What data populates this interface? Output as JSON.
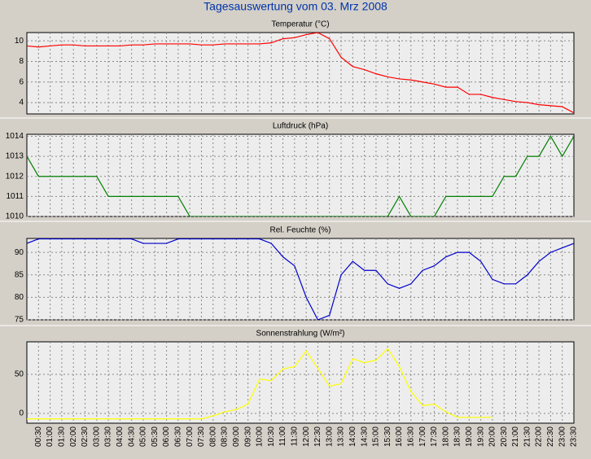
{
  "title": "Tagesauswertung vom 03. Mrz 2008",
  "chart_data": [
    {
      "type": "line",
      "title": "Temperatur (°C)",
      "color": "#ff0000",
      "ylim": [
        2.9,
        10.8
      ],
      "yticks": [
        4,
        6,
        8,
        10
      ],
      "grid": true,
      "values": [
        9.5,
        9.4,
        9.5,
        9.6,
        9.6,
        9.5,
        9.5,
        9.5,
        9.5,
        9.6,
        9.6,
        9.7,
        9.7,
        9.7,
        9.7,
        9.6,
        9.6,
        9.7,
        9.7,
        9.7,
        9.7,
        9.8,
        10.2,
        10.3,
        10.6,
        10.8,
        10.2,
        8.4,
        7.5,
        7.2,
        6.8,
        6.5,
        6.3,
        6.2,
        6.0,
        5.8,
        5.5,
        5.5,
        4.8,
        4.8,
        4.5,
        4.3,
        4.1,
        4.0,
        3.8,
        3.7,
        3.6,
        3.0
      ]
    },
    {
      "type": "line",
      "title": "Luftdruck (hPa)",
      "color": "#008000",
      "ylim": [
        1010,
        1014.1
      ],
      "yticks": [
        1010,
        1011,
        1012,
        1013,
        1014
      ],
      "grid": true,
      "values": [
        1013,
        1012,
        1012,
        1012,
        1012,
        1012,
        1012,
        1011,
        1011,
        1011,
        1011,
        1011,
        1011,
        1011,
        1010,
        1010,
        1010,
        1010,
        1010,
        1010,
        1010,
        1010,
        1010,
        1010,
        1010,
        1010,
        1010,
        1010,
        1010,
        1010,
        1010,
        1010,
        1011,
        1010,
        1010,
        1010,
        1011,
        1011,
        1011,
        1011,
        1011,
        1012,
        1012,
        1013,
        1013,
        1014,
        1013,
        1014
      ]
    },
    {
      "type": "line",
      "title": "Rel. Feuchte (%)",
      "color": "#0000cc",
      "ylim": [
        75,
        93.1
      ],
      "yticks": [
        75,
        80,
        85,
        90
      ],
      "grid": true,
      "values": [
        92,
        93,
        93,
        93,
        93,
        93,
        93,
        93,
        93,
        93,
        92,
        92,
        92,
        93,
        93,
        93,
        93,
        93,
        93,
        93,
        93,
        92,
        89,
        87,
        80,
        75,
        76,
        85,
        88,
        86,
        86,
        83,
        82,
        83,
        86,
        87,
        89,
        90,
        90,
        88,
        84,
        83,
        83,
        85,
        88,
        90,
        91,
        92
      ]
    },
    {
      "type": "line",
      "title": "Sonnenstrahlung (W/m²)",
      "color": "#ffff00",
      "ylim": [
        -12.5,
        91.7
      ],
      "yticks": [
        0,
        50
      ],
      "grid": true,
      "categories": [
        null,
        "00:30",
        "01:00",
        "01:30",
        "02:00",
        "02:30",
        "03:00",
        "03:30",
        "04:00",
        "04:30",
        "05:00",
        "05:30",
        "06:00",
        "06:30",
        "07:00",
        "07:30",
        "08:00",
        "08:30",
        "09:00",
        "09:30",
        "10:00",
        "10:30",
        "11:00",
        "11:30",
        "12:00",
        "12:30",
        "13:00",
        "13:30",
        "14:00",
        "14:30",
        "15:00",
        "15:30",
        "16:00",
        "16:30",
        "17:00",
        "17:30",
        "18:00",
        "18:30",
        "19:00",
        "19:30",
        "20:00",
        "20:30",
        "21:00",
        "21:30",
        "22:00",
        "22:30",
        "23:00",
        "23:30"
      ],
      "values": [
        -7,
        -7,
        -7,
        -7,
        -7,
        -7,
        -7,
        -7,
        -7,
        -7,
        -7,
        -7,
        -7,
        -7,
        -7,
        -7,
        -3,
        2,
        5,
        12,
        44,
        42,
        57,
        60,
        80,
        58,
        35,
        38,
        70,
        65,
        68,
        83,
        60,
        28,
        10,
        12,
        2,
        -5,
        -5,
        -5,
        -5,
        null,
        null,
        null,
        null,
        null,
        null,
        null
      ]
    }
  ]
}
